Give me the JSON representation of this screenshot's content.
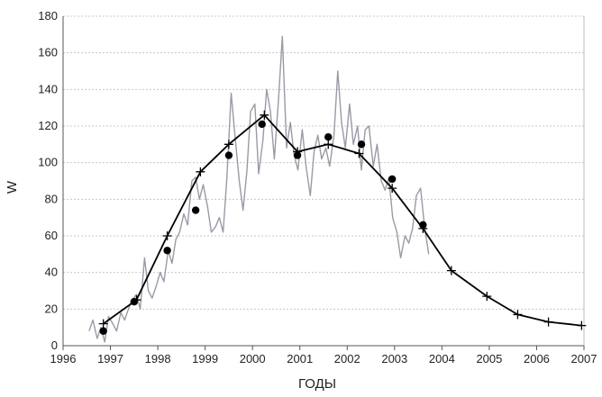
{
  "chart_data": {
    "type": "line",
    "title": "",
    "xlabel": "ГОДЫ",
    "ylabel": "W",
    "xlim": [
      1996,
      2007
    ],
    "ylim": [
      0,
      180
    ],
    "x_ticks": [
      "1996",
      "1997",
      "1998",
      "1999",
      "2000",
      "2001",
      "2002",
      "2003",
      "2004",
      "2005",
      "2006",
      "2007"
    ],
    "y_ticks": [
      "0",
      "20",
      "40",
      "60",
      "80",
      "100",
      "120",
      "140",
      "160",
      "180"
    ],
    "grid": "horizontal dashed",
    "legend": "none",
    "colors": {
      "monthly": "#9a9aa6",
      "smoothed": "#000000",
      "annual": "#000000",
      "grid": "#c8c8c8"
    },
    "series": [
      {
        "style": "thin-grey-line",
        "points": [
          [
            1996.55,
            8
          ],
          [
            1996.63,
            14
          ],
          [
            1996.72,
            4
          ],
          [
            1996.8,
            10
          ],
          [
            1996.88,
            2
          ],
          [
            1996.96,
            16
          ],
          [
            1997.05,
            12
          ],
          [
            1997.13,
            8
          ],
          [
            1997.22,
            18
          ],
          [
            1997.3,
            14
          ],
          [
            1997.38,
            20
          ],
          [
            1997.46,
            25
          ],
          [
            1997.55,
            28
          ],
          [
            1997.63,
            20
          ],
          [
            1997.72,
            48
          ],
          [
            1997.8,
            30
          ],
          [
            1997.88,
            26
          ],
          [
            1997.96,
            32
          ],
          [
            1998.05,
            40
          ],
          [
            1998.13,
            35
          ],
          [
            1998.22,
            52
          ],
          [
            1998.3,
            45
          ],
          [
            1998.38,
            58
          ],
          [
            1998.46,
            62
          ],
          [
            1998.55,
            72
          ],
          [
            1998.63,
            66
          ],
          [
            1998.72,
            90
          ],
          [
            1998.8,
            92
          ],
          [
            1998.88,
            80
          ],
          [
            1998.96,
            88
          ],
          [
            1999.05,
            76
          ],
          [
            1999.13,
            62
          ],
          [
            1999.22,
            65
          ],
          [
            1999.3,
            70
          ],
          [
            1999.38,
            62
          ],
          [
            1999.46,
            92
          ],
          [
            1999.55,
            138
          ],
          [
            1999.63,
            115
          ],
          [
            1999.72,
            90
          ],
          [
            1999.8,
            74
          ],
          [
            1999.88,
            95
          ],
          [
            1999.96,
            128
          ],
          [
            2000.05,
            132
          ],
          [
            2000.13,
            94
          ],
          [
            2000.22,
            112
          ],
          [
            2000.3,
            140
          ],
          [
            2000.38,
            128
          ],
          [
            2000.46,
            102
          ],
          [
            2000.55,
            135
          ],
          [
            2000.63,
            169
          ],
          [
            2000.72,
            108
          ],
          [
            2000.8,
            122
          ],
          [
            2000.88,
            104
          ],
          [
            2000.96,
            96
          ],
          [
            2001.05,
            118
          ],
          [
            2001.13,
            98
          ],
          [
            2001.22,
            82
          ],
          [
            2001.3,
            106
          ],
          [
            2001.38,
            115
          ],
          [
            2001.46,
            102
          ],
          [
            2001.55,
            108
          ],
          [
            2001.63,
            98
          ],
          [
            2001.72,
            115
          ],
          [
            2001.8,
            150
          ],
          [
            2001.88,
            122
          ],
          [
            2001.96,
            108
          ],
          [
            2002.05,
            132
          ],
          [
            2002.13,
            110
          ],
          [
            2002.22,
            120
          ],
          [
            2002.3,
            96
          ],
          [
            2002.38,
            118
          ],
          [
            2002.46,
            120
          ],
          [
            2002.55,
            98
          ],
          [
            2002.63,
            110
          ],
          [
            2002.72,
            90
          ],
          [
            2002.8,
            85
          ],
          [
            2002.88,
            92
          ],
          [
            2002.96,
            70
          ],
          [
            2003.05,
            62
          ],
          [
            2003.13,
            48
          ],
          [
            2003.22,
            60
          ],
          [
            2003.3,
            56
          ],
          [
            2003.38,
            64
          ],
          [
            2003.46,
            82
          ],
          [
            2003.55,
            86
          ],
          [
            2003.63,
            66
          ],
          [
            2003.72,
            50
          ]
        ]
      },
      {
        "style": "black-line-plus-markers",
        "points": [
          [
            1996.85,
            12
          ],
          [
            1997.55,
            25
          ],
          [
            1998.2,
            60
          ],
          [
            1998.9,
            95
          ],
          [
            1999.5,
            110
          ],
          [
            2000.25,
            126
          ],
          [
            2000.95,
            106
          ],
          [
            2001.6,
            110
          ],
          [
            2002.25,
            105
          ],
          [
            2002.95,
            86
          ],
          [
            2003.6,
            64
          ],
          [
            2004.2,
            41
          ],
          [
            2004.95,
            27
          ],
          [
            2005.6,
            17
          ],
          [
            2006.25,
            13
          ],
          [
            2006.95,
            11
          ]
        ]
      },
      {
        "style": "filled-circles",
        "points": [
          [
            1996.85,
            8
          ],
          [
            1997.5,
            24
          ],
          [
            1998.2,
            52
          ],
          [
            1998.8,
            74
          ],
          [
            1999.5,
            104
          ],
          [
            2000.2,
            121
          ],
          [
            2000.95,
            104
          ],
          [
            2001.6,
            114
          ],
          [
            2002.3,
            110
          ],
          [
            2002.95,
            91
          ],
          [
            2003.6,
            66
          ]
        ]
      }
    ]
  }
}
